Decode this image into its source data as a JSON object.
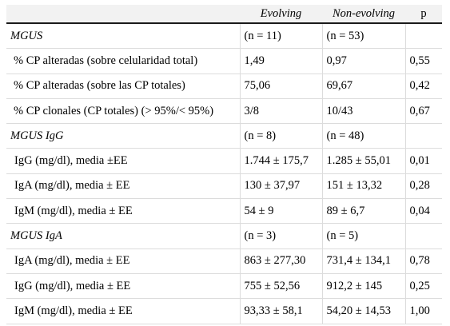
{
  "table": {
    "headers": [
      "",
      "Evolving",
      "Non-evolving",
      "p"
    ],
    "rows": [
      {
        "type": "group",
        "cells": [
          "MGUS",
          "(n = 11)",
          "(n = 53)",
          ""
        ]
      },
      {
        "type": "item",
        "cells": [
          "% CP alteradas (sobre celularidad total)",
          "1,49",
          "0,97",
          "0,55"
        ]
      },
      {
        "type": "item",
        "cells": [
          "% CP alteradas (sobre las CP totales)",
          "75,06",
          "69,67",
          "0,42"
        ]
      },
      {
        "type": "item",
        "cells": [
          "% CP clonales (CP totales) (> 95%/< 95%)",
          "3/8",
          "10/43",
          "0,67"
        ]
      },
      {
        "type": "group",
        "cells": [
          "MGUS IgG",
          "(n = 8)",
          "(n = 48)",
          ""
        ]
      },
      {
        "type": "item",
        "cells": [
          "IgG (mg/dl), media ±EE",
          "1.744 ± 175,7",
          "1.285 ± 55,01",
          "0,01"
        ]
      },
      {
        "type": "item",
        "cells": [
          "IgA (mg/dl), media ± EE",
          "130 ± 37,97",
          "151 ± 13,32",
          "0,28"
        ]
      },
      {
        "type": "item",
        "cells": [
          "IgM (mg/dl), media ± EE",
          "54 ± 9",
          "89 ± 6,7",
          "0,04"
        ]
      },
      {
        "type": "group",
        "cells": [
          "MGUS IgA",
          "(n = 3)",
          "(n = 5)",
          ""
        ]
      },
      {
        "type": "item",
        "cells": [
          "IgA (mg/dl), media ± EE",
          "863 ± 277,30",
          "731,4 ± 134,1",
          "0,78"
        ]
      },
      {
        "type": "item",
        "cells": [
          "IgG (mg/dl), media ± EE",
          "755 ± 52,56",
          "912,2 ± 145",
          "0,25"
        ]
      },
      {
        "type": "item",
        "cells": [
          "IgM (mg/dl), media ± EE",
          "93,33 ± 58,1",
          "54,20 ± 14,53",
          "1,00"
        ]
      }
    ]
  }
}
